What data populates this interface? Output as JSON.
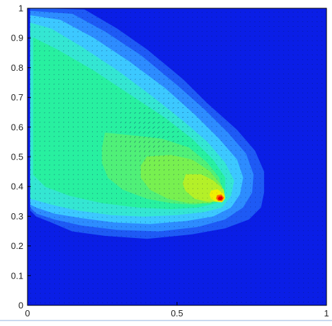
{
  "chart_data": {
    "type": "heatmap",
    "title": "",
    "xlabel": "",
    "ylabel": "",
    "xlim": [
      0,
      1
    ],
    "ylim": [
      0,
      1
    ],
    "grid": false,
    "legend": "none",
    "x_ticks": [
      {
        "value": 0,
        "label": "0"
      },
      {
        "value": 0.5,
        "label": "0.5"
      },
      {
        "value": 1,
        "label": "1"
      }
    ],
    "y_ticks": [
      {
        "value": 0,
        "label": "0"
      },
      {
        "value": 0.1,
        "label": "0.1"
      },
      {
        "value": 0.2,
        "label": "0.2"
      },
      {
        "value": 0.3,
        "label": "0.3"
      },
      {
        "value": 0.4,
        "label": "0.4"
      },
      {
        "value": 0.5,
        "label": "0.5"
      },
      {
        "value": 0.6,
        "label": "0.6"
      },
      {
        "value": 0.7,
        "label": "0.7"
      },
      {
        "value": 0.8,
        "label": "0.8"
      },
      {
        "value": 0.9,
        "label": "0.9"
      },
      {
        "value": 1,
        "label": "1"
      }
    ],
    "colormap": [
      "#0a1ee6",
      "#1e5af5",
      "#2d8cff",
      "#3cc8ff",
      "#34e6d2",
      "#28f0a0",
      "#50f078",
      "#78f050",
      "#b4f028",
      "#f0f000",
      "#ff6400",
      "#e60000"
    ],
    "field_peak": {
      "x": 0.645,
      "y": 0.36,
      "value": 1.0
    },
    "contour_levels": [
      {
        "level": 1,
        "color": "#1e5af5",
        "outline": [
          [
            0.01,
            1.0
          ],
          [
            0.19,
            0.995
          ],
          [
            0.3,
            0.93
          ],
          [
            0.4,
            0.86
          ],
          [
            0.52,
            0.76
          ],
          [
            0.6,
            0.68
          ],
          [
            0.7,
            0.59
          ],
          [
            0.76,
            0.52
          ],
          [
            0.79,
            0.45
          ],
          [
            0.79,
            0.38
          ],
          [
            0.78,
            0.33
          ],
          [
            0.74,
            0.29
          ],
          [
            0.66,
            0.26
          ],
          [
            0.55,
            0.24
          ],
          [
            0.4,
            0.225
          ],
          [
            0.26,
            0.235
          ],
          [
            0.15,
            0.25
          ],
          [
            0.08,
            0.28
          ],
          [
            0.03,
            0.3
          ],
          [
            0.01,
            0.32
          ]
        ]
      },
      {
        "level": 2,
        "color": "#2d8cff",
        "outline": [
          [
            0.01,
            0.99
          ],
          [
            0.15,
            0.98
          ],
          [
            0.26,
            0.92
          ],
          [
            0.38,
            0.84
          ],
          [
            0.5,
            0.74
          ],
          [
            0.59,
            0.66
          ],
          [
            0.67,
            0.58
          ],
          [
            0.73,
            0.51
          ],
          [
            0.755,
            0.44
          ],
          [
            0.75,
            0.38
          ],
          [
            0.72,
            0.33
          ],
          [
            0.66,
            0.29
          ],
          [
            0.57,
            0.265
          ],
          [
            0.44,
            0.25
          ],
          [
            0.3,
            0.255
          ],
          [
            0.18,
            0.27
          ],
          [
            0.09,
            0.29
          ],
          [
            0.03,
            0.31
          ],
          [
            0.01,
            0.33
          ]
        ]
      },
      {
        "level": 3,
        "color": "#3cc8ff",
        "outline": [
          [
            0.01,
            0.975
          ],
          [
            0.11,
            0.96
          ],
          [
            0.22,
            0.9
          ],
          [
            0.34,
            0.82
          ],
          [
            0.46,
            0.73
          ],
          [
            0.56,
            0.64
          ],
          [
            0.64,
            0.56
          ],
          [
            0.7,
            0.49
          ],
          [
            0.72,
            0.43
          ],
          [
            0.71,
            0.375
          ],
          [
            0.68,
            0.33
          ],
          [
            0.62,
            0.3
          ],
          [
            0.53,
            0.285
          ],
          [
            0.41,
            0.275
          ],
          [
            0.29,
            0.28
          ],
          [
            0.18,
            0.295
          ],
          [
            0.09,
            0.31
          ],
          [
            0.03,
            0.33
          ],
          [
            0.01,
            0.34
          ]
        ]
      },
      {
        "level": 4,
        "color": "#34e6d2",
        "outline": [
          [
            0.01,
            0.95
          ],
          [
            0.08,
            0.93
          ],
          [
            0.18,
            0.87
          ],
          [
            0.3,
            0.79
          ],
          [
            0.42,
            0.7
          ],
          [
            0.52,
            0.62
          ],
          [
            0.6,
            0.55
          ],
          [
            0.66,
            0.48
          ],
          [
            0.69,
            0.42
          ],
          [
            0.68,
            0.37
          ],
          [
            0.65,
            0.33
          ],
          [
            0.59,
            0.315
          ],
          [
            0.5,
            0.305
          ],
          [
            0.39,
            0.3
          ],
          [
            0.28,
            0.305
          ],
          [
            0.17,
            0.32
          ],
          [
            0.08,
            0.34
          ],
          [
            0.01,
            0.36
          ]
        ]
      },
      {
        "level": 5,
        "color": "#28f0a0",
        "outline": [
          [
            0.02,
            0.9
          ],
          [
            0.1,
            0.86
          ],
          [
            0.22,
            0.79
          ],
          [
            0.34,
            0.71
          ],
          [
            0.46,
            0.63
          ],
          [
            0.55,
            0.56
          ],
          [
            0.62,
            0.49
          ],
          [
            0.66,
            0.43
          ],
          [
            0.66,
            0.38
          ],
          [
            0.63,
            0.345
          ],
          [
            0.57,
            0.33
          ],
          [
            0.48,
            0.325
          ],
          [
            0.37,
            0.33
          ],
          [
            0.25,
            0.345
          ],
          [
            0.14,
            0.37
          ],
          [
            0.06,
            0.4
          ],
          [
            0.02,
            0.44
          ]
        ]
      },
      {
        "level": 6,
        "color": "#50f078",
        "outline": [
          [
            0.26,
            0.58
          ],
          [
            0.36,
            0.57
          ],
          [
            0.45,
            0.56
          ],
          [
            0.54,
            0.53
          ],
          [
            0.6,
            0.48
          ],
          [
            0.64,
            0.43
          ],
          [
            0.65,
            0.385
          ],
          [
            0.62,
            0.35
          ],
          [
            0.56,
            0.34
          ],
          [
            0.48,
            0.345
          ],
          [
            0.4,
            0.36
          ],
          [
            0.32,
            0.39
          ],
          [
            0.27,
            0.43
          ],
          [
            0.25,
            0.48
          ],
          [
            0.25,
            0.53
          ]
        ]
      },
      {
        "level": 7,
        "color": "#78f050",
        "outline": [
          [
            0.4,
            0.5
          ],
          [
            0.48,
            0.505
          ],
          [
            0.55,
            0.49
          ],
          [
            0.61,
            0.45
          ],
          [
            0.65,
            0.4
          ],
          [
            0.65,
            0.365
          ],
          [
            0.61,
            0.345
          ],
          [
            0.54,
            0.345
          ],
          [
            0.47,
            0.36
          ],
          [
            0.41,
            0.39
          ],
          [
            0.38,
            0.43
          ],
          [
            0.38,
            0.47
          ]
        ]
      },
      {
        "level": 8,
        "color": "#b4f028",
        "outline": [
          [
            0.53,
            0.44
          ],
          [
            0.58,
            0.44
          ],
          [
            0.62,
            0.42
          ],
          [
            0.655,
            0.39
          ],
          [
            0.66,
            0.365
          ],
          [
            0.64,
            0.35
          ],
          [
            0.6,
            0.35
          ],
          [
            0.56,
            0.36
          ],
          [
            0.53,
            0.385
          ],
          [
            0.52,
            0.41
          ]
        ]
      },
      {
        "level": 9,
        "color": "#f0f000",
        "outline": [
          [
            0.615,
            0.385
          ],
          [
            0.635,
            0.39
          ],
          [
            0.655,
            0.375
          ],
          [
            0.66,
            0.36
          ],
          [
            0.65,
            0.348
          ],
          [
            0.63,
            0.35
          ],
          [
            0.615,
            0.36
          ],
          [
            0.61,
            0.372
          ]
        ]
      },
      {
        "level": 10,
        "color": "#ff6400",
        "outline": [
          [
            0.635,
            0.37
          ],
          [
            0.648,
            0.372
          ],
          [
            0.656,
            0.362
          ],
          [
            0.65,
            0.352
          ],
          [
            0.638,
            0.353
          ],
          [
            0.632,
            0.36
          ]
        ]
      },
      {
        "level": 11,
        "color": "#e60000",
        "outline": [
          [
            0.641,
            0.365
          ],
          [
            0.649,
            0.366
          ],
          [
            0.652,
            0.36
          ],
          [
            0.647,
            0.355
          ],
          [
            0.64,
            0.356
          ],
          [
            0.638,
            0.36
          ]
        ]
      }
    ]
  }
}
